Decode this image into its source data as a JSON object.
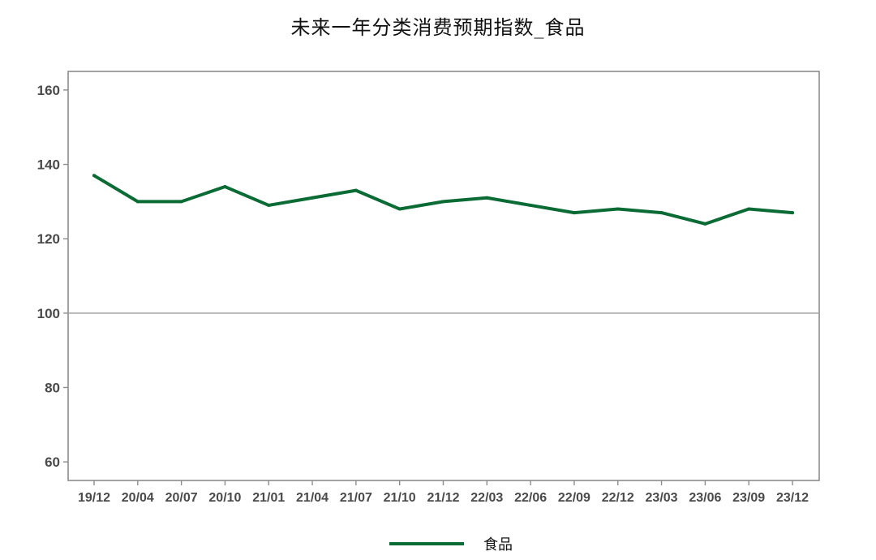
{
  "chart_data": {
    "type": "line",
    "title": "未来一年分类消费预期指数_食品",
    "xlabel": "",
    "ylabel": "",
    "ylim": [
      55,
      165
    ],
    "yticks": [
      60,
      80,
      100,
      120,
      140,
      160
    ],
    "reference_line": 100,
    "grid": false,
    "legend_position": "bottom",
    "categories": [
      "19/12",
      "20/04",
      "20/07",
      "20/10",
      "21/01",
      "21/04",
      "21/07",
      "21/10",
      "21/12",
      "22/03",
      "22/06",
      "22/09",
      "22/12",
      "23/03",
      "23/06",
      "23/09",
      "23/12"
    ],
    "series": [
      {
        "name": "食品",
        "color": "#0b6b34",
        "values": [
          137,
          130,
          130,
          134,
          129,
          131,
          133,
          128,
          130,
          131,
          129,
          127,
          128,
          127,
          124,
          128,
          127
        ]
      }
    ]
  }
}
